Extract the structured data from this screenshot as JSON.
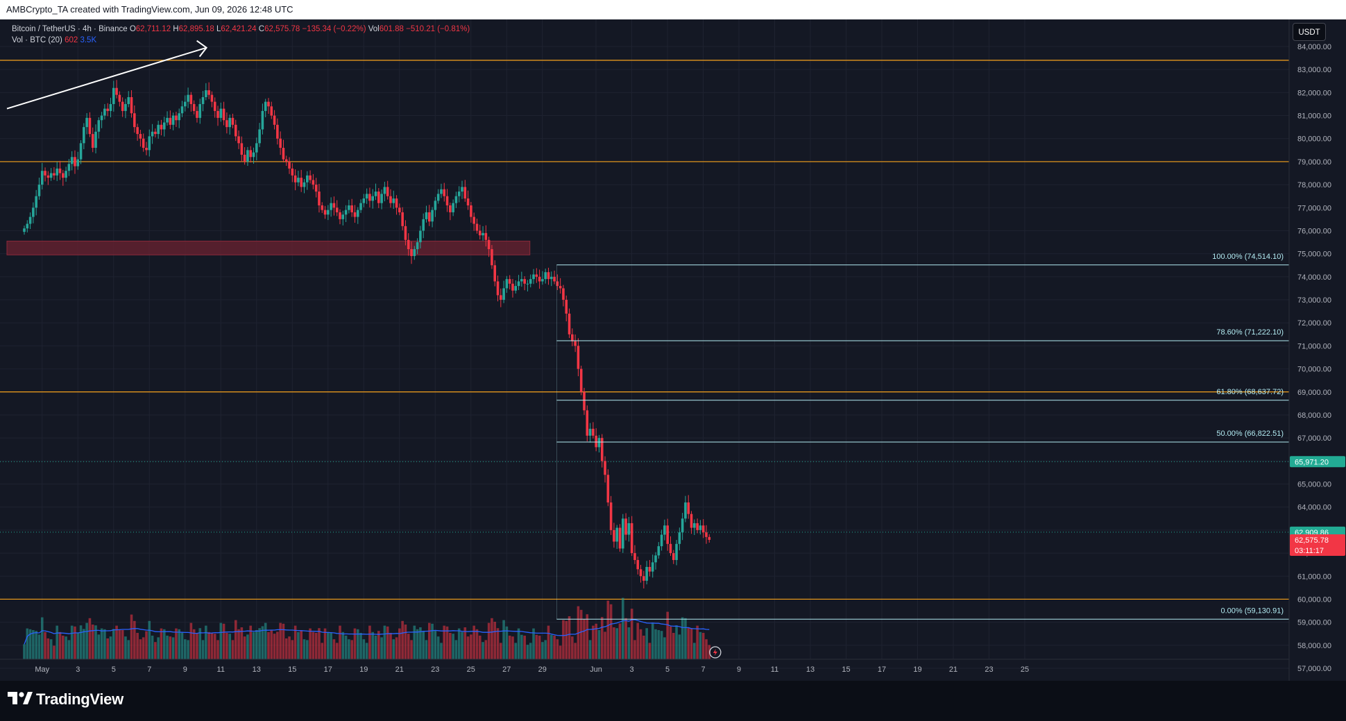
{
  "header": {
    "attribution": "AMBCrypto_TA created with TradingView.com, Jun 09, 2026 12:48 UTC"
  },
  "legend": {
    "symbol": "Bitcoin / TetherUS · 4h · Binance",
    "open_label": "O",
    "open": "62,711.12",
    "high_label": "H",
    "high": "62,895.18",
    "low_label": "L",
    "low": "62,421.24",
    "close_label": "C",
    "close": "62,575.78",
    "change": "−135.34 (−0.22%)",
    "vol_label": "Vol",
    "vol": "601.88",
    "vol_change": "−510.21 (−0.81%)",
    "vol_indicator": "Vol · BTC (20)",
    "vol_value": "602",
    "vol_ma": "3.5K"
  },
  "currency": "USDT",
  "footer": {
    "brand": "TradingView"
  },
  "colors": {
    "up": "#26a69a",
    "down": "#f23645",
    "orange": "#f7a21b",
    "fib": "#b2ebf2",
    "ma": "#2962ff",
    "grid": "#1e2230"
  },
  "chart_data": {
    "type": "candlestick",
    "symbol": "BTCUSDT",
    "interval": "4h",
    "y_axis": {
      "min": 56600,
      "max": 84800,
      "ticks": [
        "84,000.00",
        "83,000.00",
        "82,000.00",
        "81,000.00",
        "80,000.00",
        "79,000.00",
        "78,000.00",
        "77,000.00",
        "76,000.00",
        "75,000.00",
        "74,000.00",
        "73,000.00",
        "72,000.00",
        "71,000.00",
        "70,000.00",
        "69,000.00",
        "68,000.00",
        "67,000.00",
        "66,000.00",
        "65,000.00",
        "64,000.00",
        "63,000.00",
        "62,000.00",
        "61,000.00",
        "60,000.00",
        "59,000.00",
        "58,000.00",
        "57,000.00"
      ]
    },
    "x_axis": {
      "ticks": [
        "May",
        "3",
        "5",
        "7",
        "9",
        "11",
        "13",
        "15",
        "17",
        "19",
        "21",
        "23",
        "25",
        "27",
        "29",
        "Jun",
        "3",
        "5",
        "7",
        "9",
        "11",
        "13",
        "15",
        "17",
        "19",
        "21",
        "23",
        "25"
      ],
      "tick_days": [
        1,
        3,
        5,
        7,
        9,
        11,
        13,
        15,
        17,
        19,
        21,
        23,
        25,
        27,
        29,
        32,
        34,
        36,
        38,
        40,
        42,
        44,
        46,
        48,
        50,
        52,
        54,
        56
      ]
    },
    "horizontal_levels": [
      83400,
      79000,
      69000,
      60000
    ],
    "supply_zone": {
      "from_day": 0,
      "to_day": 28.3,
      "low": 74950,
      "high": 75550
    },
    "trend_arrow": {
      "from": [
        0.0,
        81300
      ],
      "to": [
        10.2,
        83950
      ]
    },
    "fibonacci": {
      "from_day": 29.8,
      "levels": [
        {
          "label": "100.00% (74,514.10)",
          "price": 74514.1
        },
        {
          "label": "78.60% (71,222.10)",
          "price": 71222.1
        },
        {
          "label": "61.80% (68,637.72)",
          "price": 68637.72
        },
        {
          "label": "50.00% (66,822.51)",
          "price": 66822.51
        },
        {
          "label": "0.00% (59,130.91)",
          "price": 59130.91
        }
      ]
    },
    "price_badges": [
      {
        "label": "65,971.20",
        "price": 65971.2,
        "color": "#22ab94",
        "dotted": true
      },
      {
        "label": "62,909.86",
        "price": 62909.86,
        "color": "#22ab94",
        "dotted": true
      }
    ],
    "last_price": {
      "label": "62,575.78",
      "countdown": "03:11:17",
      "price": 62575.78
    },
    "candles": {
      "start_day": 0.0,
      "step_days": 0.1667,
      "close": [
        76100,
        76300,
        76600,
        77000,
        77500,
        78000,
        78600,
        78400,
        78300,
        78500,
        78400,
        78700,
        78500,
        78300,
        78600,
        78900,
        79200,
        78800,
        79100,
        79800,
        80500,
        80900,
        80200,
        79600,
        80300,
        80800,
        81000,
        81300,
        81200,
        81500,
        82200,
        81900,
        81600,
        81200,
        81500,
        81800,
        81100,
        80500,
        80200,
        80000,
        79600,
        79500,
        80100,
        80300,
        80200,
        80600,
        80400,
        80700,
        80900,
        80600,
        81000,
        80800,
        81100,
        81400,
        81600,
        81900,
        81500,
        81200,
        80900,
        81500,
        81800,
        82100,
        81900,
        81600,
        81200,
        80900,
        81300,
        80800,
        80500,
        80900,
        80600,
        80100,
        79800,
        79300,
        79000,
        79500,
        79200,
        79400,
        79800,
        80400,
        81200,
        81600,
        81400,
        81000,
        80600,
        80000,
        79600,
        79100,
        79000,
        78700,
        78400,
        78100,
        78300,
        77900,
        78100,
        78400,
        78200,
        78000,
        77700,
        77100,
        76900,
        76700,
        76900,
        77200,
        77000,
        76800,
        76500,
        76700,
        76900,
        77100,
        76800,
        76600,
        76900,
        77200,
        77400,
        77600,
        77300,
        77500,
        77700,
        77200,
        77600,
        77900,
        77500,
        77200,
        77400,
        77000,
        76800,
        76200,
        75600,
        75200,
        74900,
        75200,
        75500,
        76000,
        76500,
        76800,
        76400,
        76900,
        77300,
        77600,
        77800,
        77500,
        77100,
        76800,
        77200,
        77500,
        77700,
        77900,
        77400,
        77100,
        76600,
        76300,
        76000,
        75800,
        75900,
        75600,
        75200,
        74500,
        73800,
        73200,
        73000,
        73500,
        73900,
        73700,
        73400,
        73600,
        73800,
        73900,
        73700,
        73700,
        73900,
        74100,
        74000,
        73800,
        73900,
        74200,
        73900,
        74000,
        73800,
        73600,
        73500,
        73000,
        72400,
        71500,
        71200,
        71000,
        70000,
        69000,
        68200,
        67100,
        67400,
        67100,
        66600,
        67000,
        66000,
        65400,
        64200,
        63000,
        62500,
        63100,
        62200,
        63500,
        62800,
        63300,
        62000,
        61700,
        61300,
        61000,
        60800,
        61400,
        61200,
        61600,
        61900,
        62300,
        62800,
        63200,
        62400,
        62000,
        61700,
        62400,
        62900,
        63500,
        64200,
        63700,
        63100,
        63300,
        63000,
        63200,
        62900,
        62700,
        62575.78
      ],
      "volume_scale_max": 15
    },
    "volume_ma_color": "#2962ff"
  }
}
